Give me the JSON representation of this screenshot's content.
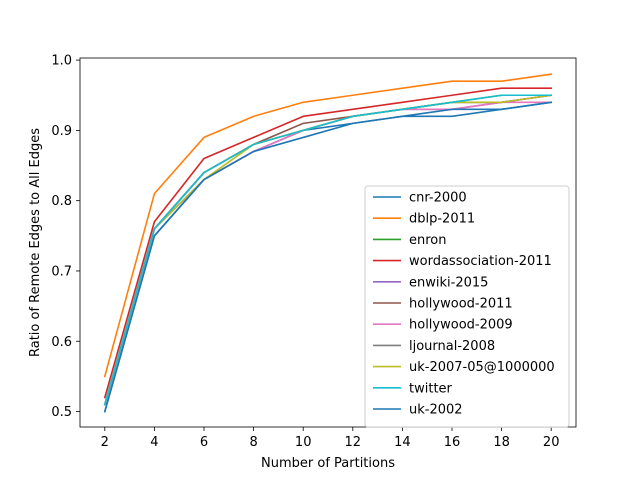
{
  "chart_data": {
    "type": "line",
    "title": "",
    "xlabel": "Number of Partitions",
    "ylabel": "Ratio of Remote Edges to All Edges",
    "x": [
      2,
      4,
      6,
      8,
      10,
      12,
      14,
      16,
      18,
      20
    ],
    "xticks": [
      "2",
      "4",
      "6",
      "8",
      "10",
      "12",
      "14",
      "16",
      "18",
      "20"
    ],
    "yticks": [
      "0.5",
      "0.6",
      "0.7",
      "0.8",
      "0.9",
      "1.0"
    ],
    "xlim": [
      1,
      21
    ],
    "ylim": [
      0.478,
      1.003
    ],
    "grid": false,
    "legend_position": "lower-right",
    "series": [
      {
        "name": "cnr-2000",
        "color": "#1f77b4",
        "values": [
          0.5,
          0.75,
          0.83,
          0.87,
          0.9,
          0.91,
          0.92,
          0.92,
          0.93,
          0.94
        ]
      },
      {
        "name": "dblp-2011",
        "color": "#ff7f0e",
        "values": [
          0.55,
          0.81,
          0.89,
          0.92,
          0.94,
          0.95,
          0.96,
          0.97,
          0.97,
          0.98
        ]
      },
      {
        "name": "enron",
        "color": "#2ca02c",
        "values": [
          0.51,
          0.76,
          0.84,
          0.88,
          0.9,
          0.92,
          0.93,
          0.94,
          0.95,
          0.95
        ]
      },
      {
        "name": "wordassociation-2011",
        "color": "#d62728",
        "values": [
          0.52,
          0.77,
          0.86,
          0.89,
          0.92,
          0.93,
          0.94,
          0.95,
          0.96,
          0.96
        ]
      },
      {
        "name": "enwiki-2015",
        "color": "#9467bd",
        "values": [
          0.51,
          0.76,
          0.83,
          0.87,
          0.9,
          0.92,
          0.93,
          0.93,
          0.94,
          0.95
        ]
      },
      {
        "name": "hollywood-2011",
        "color": "#8c564b",
        "values": [
          0.51,
          0.76,
          0.84,
          0.88,
          0.91,
          0.92,
          0.93,
          0.94,
          0.94,
          0.95
        ]
      },
      {
        "name": "hollywood-2009",
        "color": "#e377c2",
        "values": [
          0.51,
          0.76,
          0.83,
          0.87,
          0.9,
          0.92,
          0.93,
          0.93,
          0.94,
          0.94
        ]
      },
      {
        "name": "ljournal-2008",
        "color": "#7f7f7f",
        "values": [
          0.51,
          0.76,
          0.84,
          0.88,
          0.9,
          0.92,
          0.93,
          0.94,
          0.94,
          0.95
        ]
      },
      {
        "name": "uk-2007-05@1000000",
        "color": "#bcbd22",
        "values": [
          0.51,
          0.76,
          0.83,
          0.88,
          0.9,
          0.92,
          0.93,
          0.94,
          0.94,
          0.95
        ]
      },
      {
        "name": "twitter",
        "color": "#17becf",
        "values": [
          0.51,
          0.76,
          0.84,
          0.88,
          0.9,
          0.92,
          0.93,
          0.94,
          0.95,
          0.95
        ]
      },
      {
        "name": "uk-2002",
        "color": "#1f77b4",
        "values": [
          0.5,
          0.75,
          0.83,
          0.87,
          0.89,
          0.91,
          0.92,
          0.93,
          0.93,
          0.94
        ]
      }
    ]
  }
}
